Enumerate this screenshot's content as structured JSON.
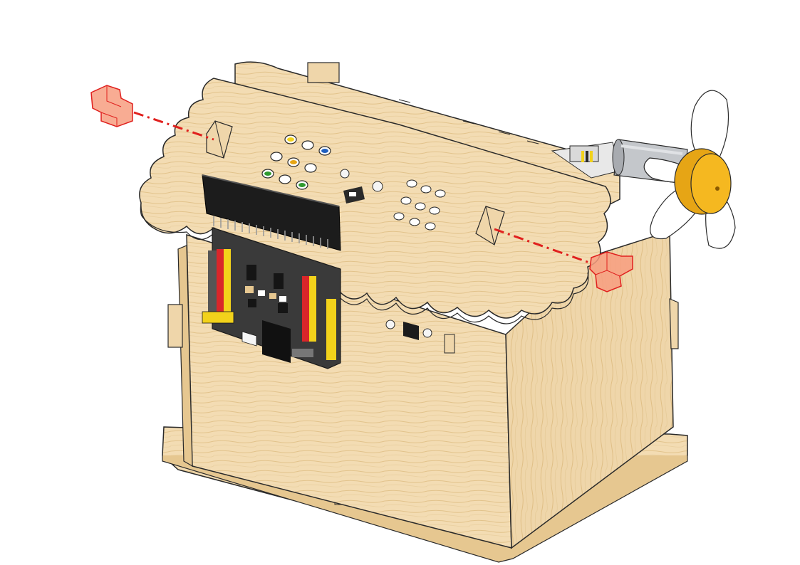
{
  "figure": {
    "subject": "wooden-house-kit-roof-assembly",
    "colors": {
      "wood": "#f3dcb3",
      "wood_dark": "#e6c790",
      "wood_grain": "#d9b47a",
      "outline": "#2a2a2a",
      "board_black": "#1c1c1c",
      "board_gray": "#3a3a3a",
      "pin_yellow": "#f2d21b",
      "pin_red": "#d9262a",
      "fan_yellow": "#f5b820",
      "motor_gray": "#b9bcc0",
      "fastener_red": "#f07a5a",
      "guide_line": "#e0201e"
    },
    "icons": {
      "fastener_left": "t-peg-fastener-icon",
      "fastener_right": "t-peg-fastener-icon",
      "fan": "propeller-fan-icon",
      "motor": "dc-motor-icon"
    }
  }
}
